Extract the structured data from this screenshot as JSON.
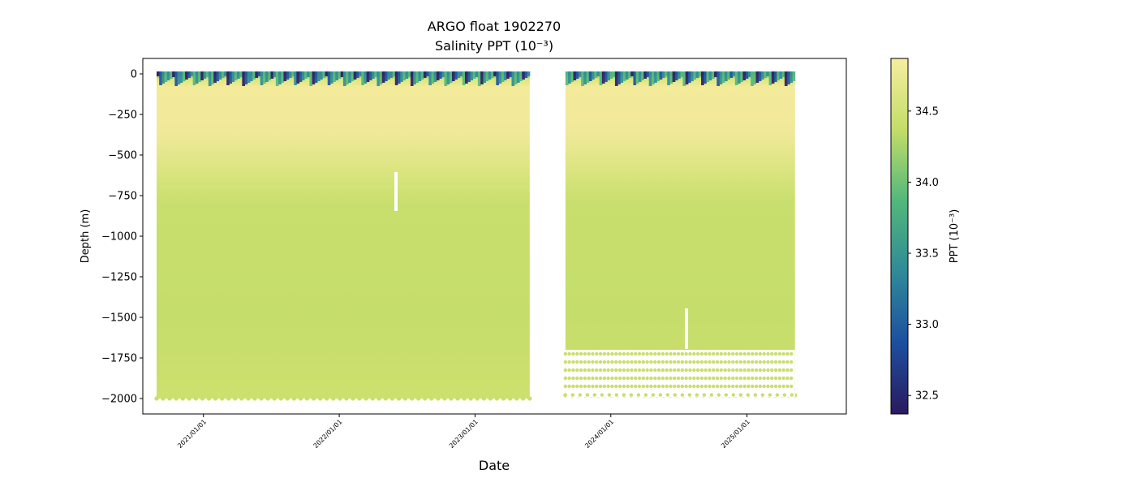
{
  "chart_data": {
    "type": "heatmap",
    "title": "ARGO float 1902270",
    "subtitle": "Salinity PPT (10⁻³)",
    "xlabel": "Date",
    "ylabel": "Depth (m)",
    "colorbar_label": "PPT (10⁻³)",
    "x_ticks": [
      "2021/01/01",
      "2022/01/01",
      "2023/01/01",
      "2024/01/01",
      "2025/01/01"
    ],
    "x_range": [
      "2020-07-22",
      "2025-09-25"
    ],
    "y_ticks": [
      0,
      -250,
      -500,
      -750,
      -1000,
      -1250,
      -1500,
      -1750,
      -2000
    ],
    "ylim": [
      -2095,
      95
    ],
    "colorbar_ticks": [
      32.5,
      33.0,
      33.5,
      34.0,
      34.5
    ],
    "colorbar_range": [
      32.37,
      34.87
    ],
    "colormap": [
      "#2a1a5e",
      "#1c4fa0",
      "#2f8a98",
      "#52b87a",
      "#c3dd68",
      "#f6eda0"
    ],
    "segments": [
      {
        "start": "2020-08-28",
        "end": "2023-05-28",
        "max_depth": -2000
      },
      {
        "start": "2023-09-01",
        "end": "2025-05-10",
        "max_depth": -1980
      }
    ],
    "profile": [
      {
        "depth": 0,
        "salinity": 33.6
      },
      {
        "depth": -30,
        "salinity": 34.4
      },
      {
        "depth": -60,
        "salinity": 34.85
      },
      {
        "depth": -250,
        "salinity": 34.8
      },
      {
        "depth": -450,
        "salinity": 34.7
      },
      {
        "depth": -650,
        "salinity": 34.58
      },
      {
        "depth": -1000,
        "salinity": 34.55
      },
      {
        "depth": -2000,
        "salinity": 34.58
      }
    ]
  },
  "colors": {
    "surface_dark": "#2a1a5e",
    "surface_blue": "#1c4fa0",
    "surface_teal": "#2f8a98",
    "surface_green": "#52b87a",
    "deep_water": "#cde06e",
    "upper_water": "#f3ea9a"
  }
}
